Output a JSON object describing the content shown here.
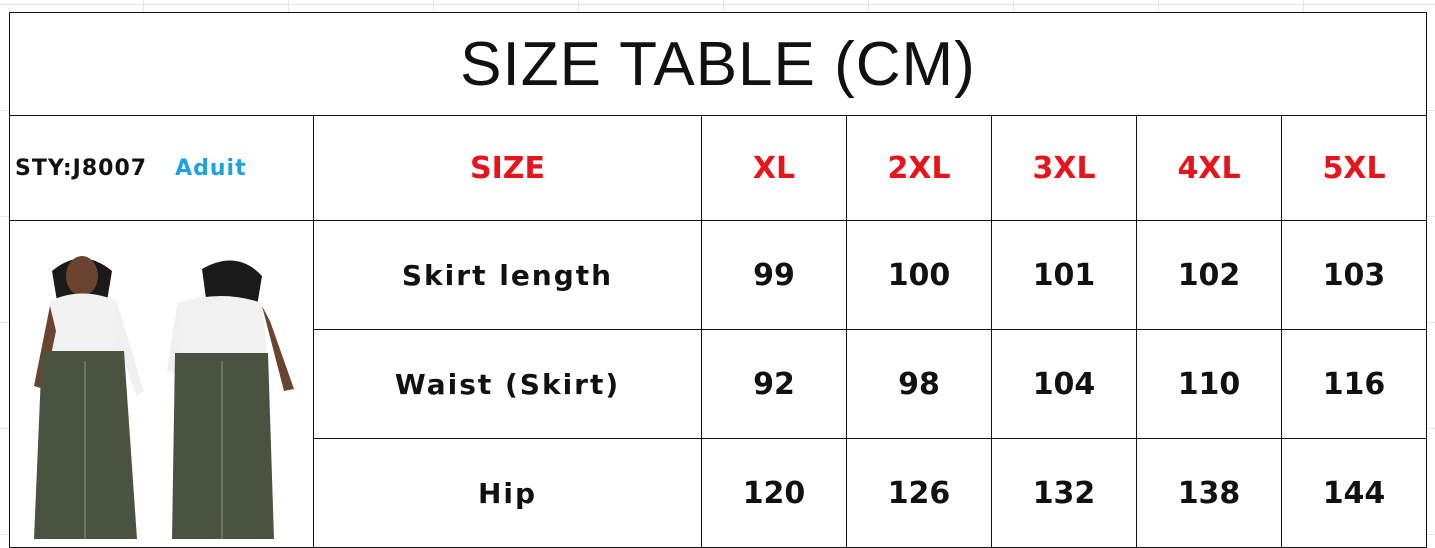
{
  "title": "SIZE TABLE (CM)",
  "style_code": "STY:J8007",
  "category": "Aduit",
  "header": {
    "label": "SIZE",
    "sizes": [
      "XL",
      "2XL",
      "3XL",
      "4XL",
      "5XL"
    ]
  },
  "rows": [
    {
      "label": "Skirt length",
      "values": [
        "99",
        "100",
        "101",
        "102",
        "103"
      ]
    },
    {
      "label": "Waist (Skirt)",
      "values": [
        "92",
        "98",
        "104",
        "110",
        "116"
      ]
    },
    {
      "label": "Hip",
      "values": [
        "120",
        "126",
        "132",
        "138",
        "144"
      ]
    }
  ],
  "colors": {
    "size_text": "#e8141b",
    "category_text": "#1aa3e0",
    "skirt": "#4a5240",
    "top": "#f2f2f2"
  }
}
